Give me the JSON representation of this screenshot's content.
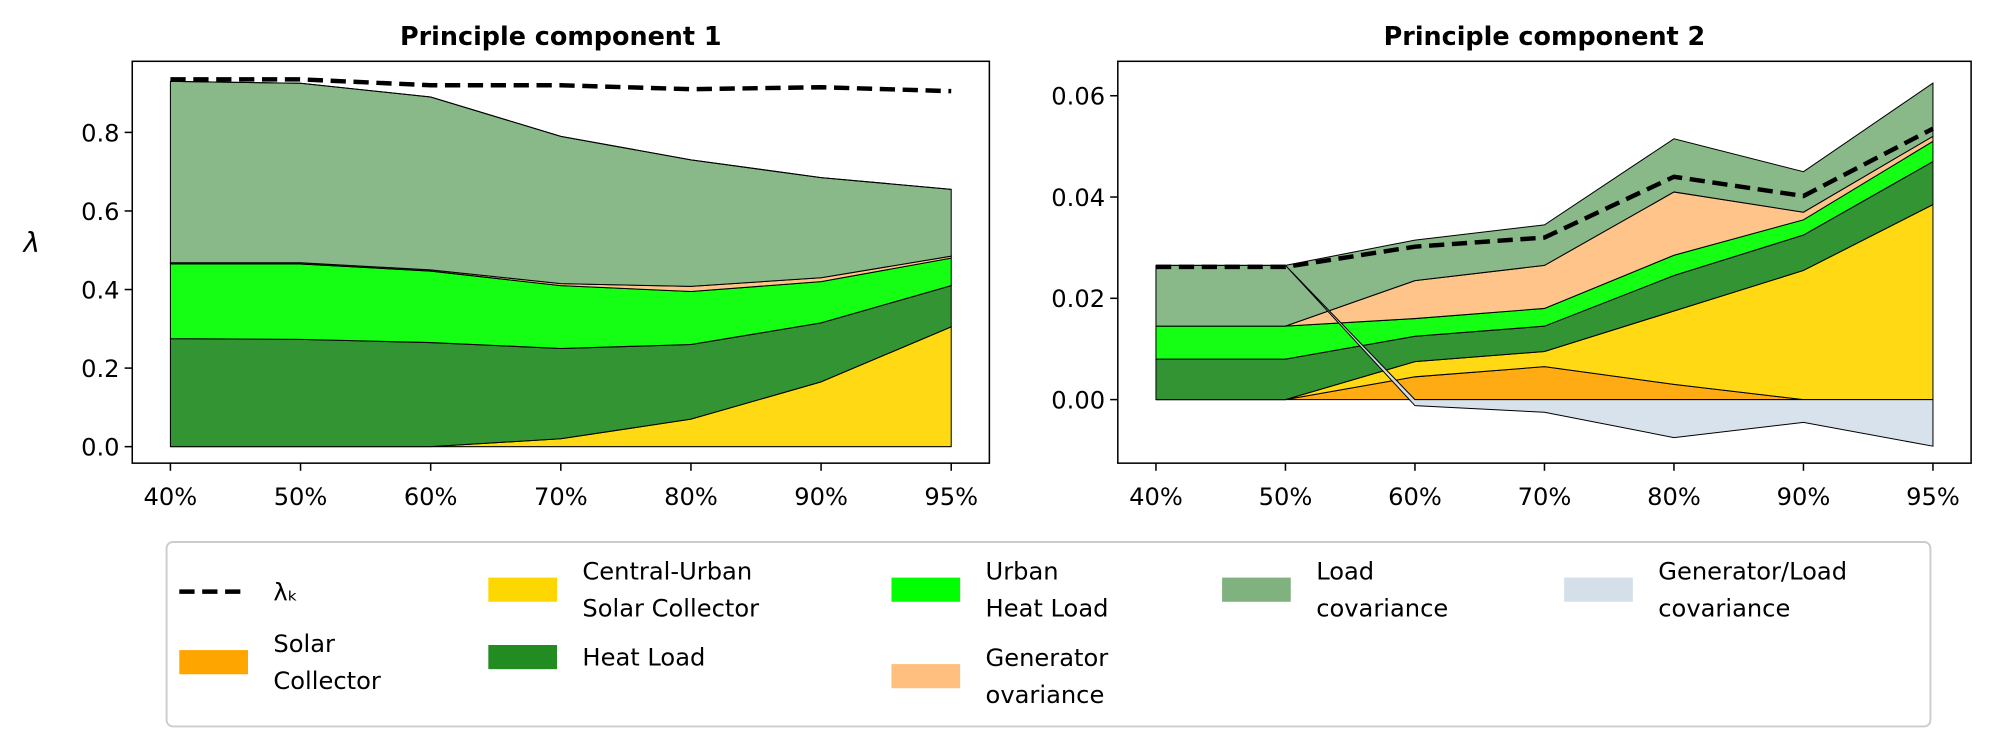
{
  "chart_data": [
    {
      "type": "stacked-area",
      "title": "Principle component 1",
      "y_label": "λ",
      "categories": [
        "40%",
        "50%",
        "60%",
        "70%",
        "80%",
        "90%",
        "95%"
      ],
      "ylim": [
        -0.042,
        0.981
      ],
      "yticks": [
        {
          "value": 0,
          "label": "0.0"
        },
        0.2,
        0.4,
        0.6,
        0.8
      ],
      "series": [
        {
          "name": "λₖ",
          "type": "line",
          "color": "#000000",
          "values": [
            0.935,
            0.935,
            0.92,
            0.92,
            0.91,
            0.915,
            0.905
          ]
        },
        {
          "name": "Solar\nCollector",
          "color": "#ffa500",
          "values": [
            0,
            0,
            0,
            0,
            0,
            0,
            0
          ]
        },
        {
          "name": "Central-Urban\nSolar Collector",
          "color": "#ffd700",
          "values": [
            0,
            0,
            0,
            0.02,
            0.07,
            0.165,
            0.305
          ]
        },
        {
          "name": "Heat Load",
          "color": "#228b22",
          "values": [
            0.275,
            0.273,
            0.265,
            0.23,
            0.19,
            0.15,
            0.105
          ]
        },
        {
          "name": "Urban\nHeat Load",
          "color": "#00ff00",
          "values": [
            0.19,
            0.192,
            0.182,
            0.16,
            0.135,
            0.105,
            0.07
          ]
        },
        {
          "name": "Generator\novariance",
          "color": "#ffbf7f",
          "values": [
            0.003,
            0.003,
            0.003,
            0.005,
            0.013,
            0.01,
            0.005
          ]
        },
        {
          "name": "Load\ncovariance",
          "color": "#7fb27f",
          "values": [
            0.462,
            0.457,
            0.44,
            0.375,
            0.322,
            0.255,
            0.17
          ]
        },
        {
          "name": "Generator/Load\ncovariance",
          "color": "#d5dfea",
          "values": [
            0,
            0,
            0,
            0,
            0,
            0,
            0
          ]
        }
      ]
    },
    {
      "type": "stacked-area",
      "title": "Principle component 2",
      "categories": [
        "40%",
        "50%",
        "60%",
        "70%",
        "80%",
        "90%",
        "95%"
      ],
      "ylim": [
        -0.01255,
        0.0668
      ],
      "yticks": [
        {
          "value": 0,
          "label": "0.00"
        },
        {
          "value": 0.02,
          "label": "0.02"
        },
        {
          "value": 0.04,
          "label": "0.04"
        },
        {
          "value": 0.06,
          "label": "0.06"
        }
      ],
      "series": [
        {
          "name": "λₖ",
          "type": "line",
          "color": "#000000",
          "values": [
            0.0262,
            0.0262,
            0.0302,
            0.032,
            0.044,
            0.0402,
            0.0535
          ]
        },
        {
          "name": "Solar\nCollector",
          "color": "#ffa500",
          "values": [
            0,
            0,
            0.0045,
            0.0065,
            0.003,
            0,
            0
          ]
        },
        {
          "name": "Central-Urban\nSolar Collector",
          "color": "#ffd700",
          "values": [
            0,
            0,
            0.003,
            0.003,
            0.0145,
            0.0255,
            0.0385
          ]
        },
        {
          "name": "Heat Load",
          "color": "#228b22",
          "values": [
            0.008,
            0.008,
            0.005,
            0.005,
            0.007,
            0.007,
            0.0085
          ]
        },
        {
          "name": "Urban\nHeat Load",
          "color": "#00ff00",
          "values": [
            0.0065,
            0.0065,
            0.0035,
            0.0035,
            0.004,
            0.003,
            0.004
          ]
        },
        {
          "name": "Generator\novariance",
          "color": "#ffbf7f",
          "values": [
            0,
            0,
            0.0075,
            0.0085,
            0.0125,
            0.0015,
            0.001
          ]
        },
        {
          "name": "Load\ncovariance",
          "color": "#7fb27f",
          "values": [
            0.012,
            0.012,
            0.008,
            0.008,
            0.0105,
            0.008,
            0.0105
          ]
        },
        {
          "name": "Generator/Load\ncovariance",
          "color": "#d5dfea",
          "values": [
            0,
            0,
            -0.0012,
            -0.0025,
            -0.0075,
            -0.0045,
            -0.0092
          ]
        }
      ]
    }
  ]
}
